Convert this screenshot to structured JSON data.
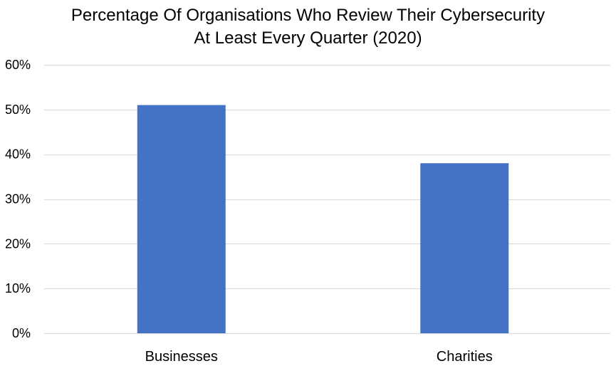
{
  "chart_data": {
    "type": "bar",
    "title": "Percentage Of Organisations Who Review Their Cybersecurity\nAt Least Every Quarter (2020)",
    "categories": [
      "Businesses",
      "Charities"
    ],
    "values": [
      51,
      38
    ],
    "ylim": [
      0,
      60
    ],
    "yticks": [
      0,
      10,
      20,
      30,
      40,
      50,
      60
    ],
    "ytick_labels": [
      "0%",
      "10%",
      "20%",
      "30%",
      "40%",
      "50%",
      "60%"
    ],
    "xlabel": "",
    "ylabel": "",
    "grid": true,
    "legend": "none",
    "bar_color": "#4472C4",
    "grid_color": "#D9D9D9"
  }
}
